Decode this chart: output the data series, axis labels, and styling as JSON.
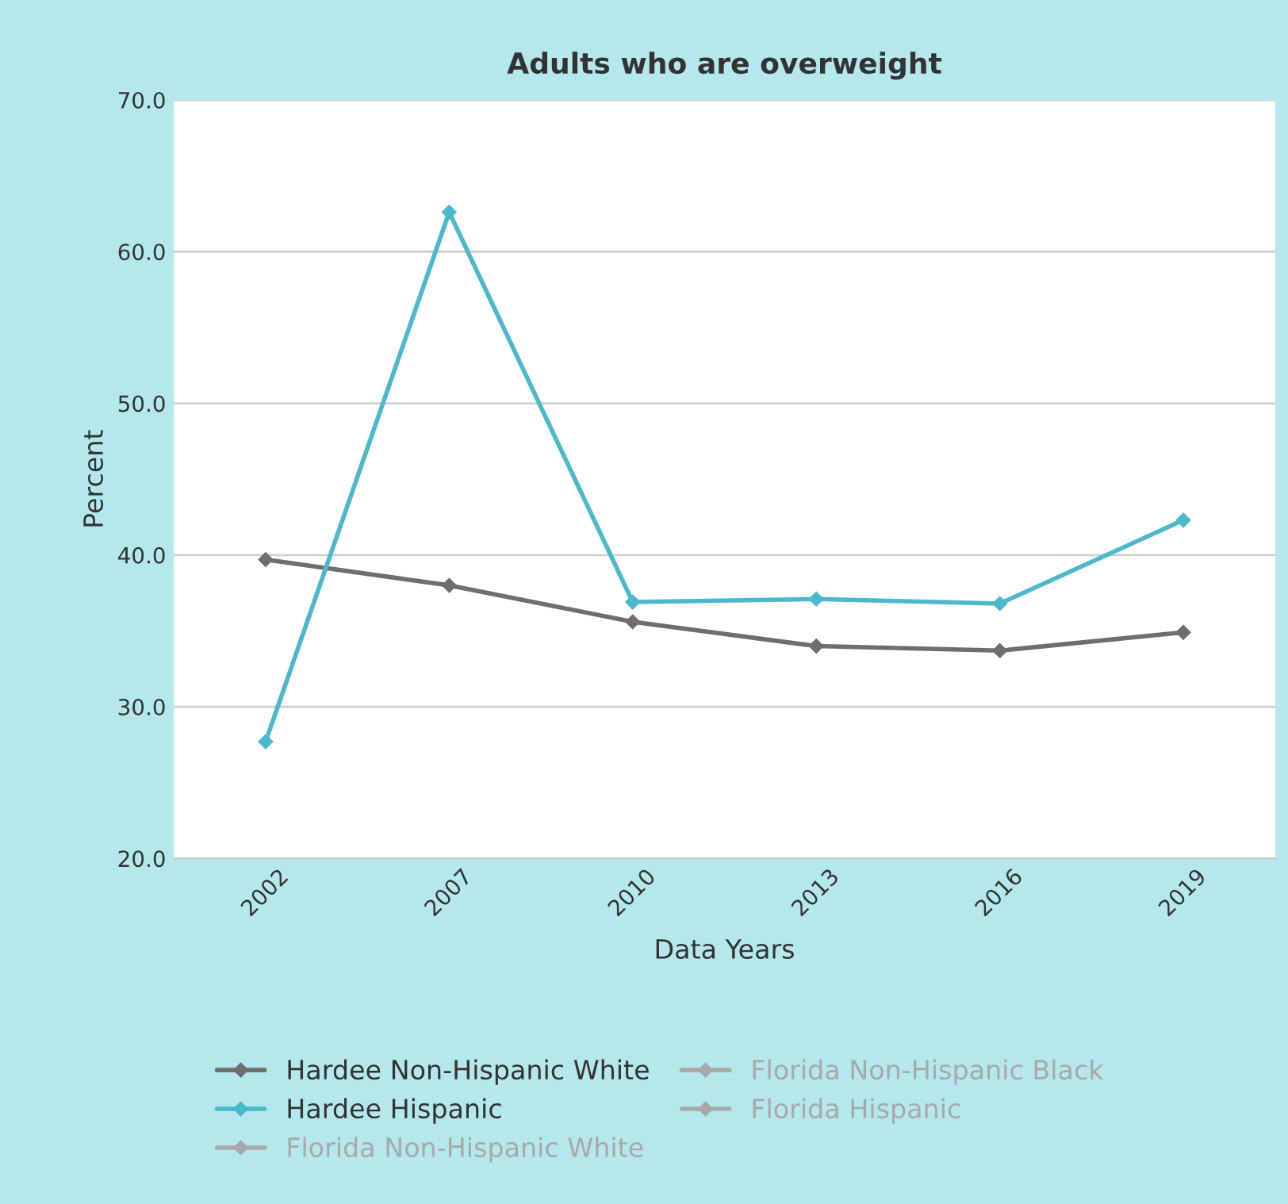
{
  "chart_data": {
    "type": "line",
    "title": "Adults who are overweight",
    "xlabel": "Data Years",
    "ylabel": "Percent",
    "categories": [
      "2002",
      "2007",
      "2010",
      "2013",
      "2016",
      "2019"
    ],
    "series": [
      {
        "name": "Hardee Non-Hispanic White",
        "color": "#6e6e6e",
        "values": [
          39.7,
          38.0,
          35.6,
          34.0,
          33.7,
          34.9
        ]
      },
      {
        "name": "Hardee Hispanic",
        "color": "#4bb8cc",
        "values": [
          27.7,
          62.6,
          36.9,
          37.1,
          36.8,
          42.3
        ]
      },
      {
        "name": "Florida Non-Hispanic White",
        "color": "#a9a9a9",
        "values": [
          null,
          null,
          null,
          null,
          null,
          null
        ]
      },
      {
        "name": "Florida Non-Hispanic Black",
        "color": "#a9a9a9",
        "values": [
          null,
          null,
          null,
          null,
          null,
          null
        ]
      },
      {
        "name": "Florida Hispanic",
        "color": "#a9a9a9",
        "values": [
          null,
          null,
          null,
          null,
          null,
          null
        ]
      }
    ],
    "ylim": [
      20,
      70
    ],
    "yticks": [
      {
        "value": 20,
        "label": "20.0"
      },
      {
        "value": 30,
        "label": "30.0"
      },
      {
        "value": 40,
        "label": "40.0"
      },
      {
        "value": 50,
        "label": "50.0"
      },
      {
        "value": 60,
        "label": "60.0"
      },
      {
        "value": 70,
        "label": "70.0"
      }
    ],
    "grid": "y",
    "legend": "bottom",
    "marker": "diamond",
    "line_style": "solid"
  }
}
